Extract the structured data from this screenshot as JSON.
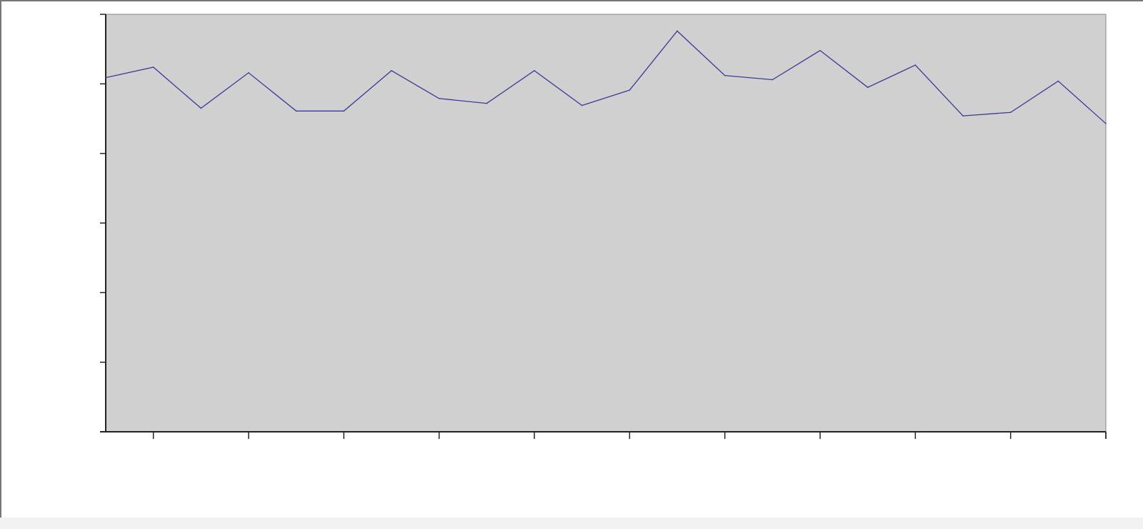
{
  "chart_data": {
    "type": "line",
    "title": "",
    "xlabel": "",
    "ylabel": "",
    "x": [
      1,
      2,
      3,
      4,
      5,
      6,
      7,
      8,
      9,
      10,
      11,
      12,
      13,
      14,
      15,
      16,
      17,
      18,
      19,
      20,
      21,
      22
    ],
    "series": [
      {
        "values": [
          5.09,
          5.24,
          4.65,
          5.16,
          4.61,
          4.61,
          5.19,
          4.79,
          4.72,
          5.19,
          4.69,
          4.91,
          5.76,
          5.12,
          5.06,
          5.48,
          4.95,
          5.27,
          4.54,
          4.59,
          5.04,
          4.43
        ]
      }
    ],
    "ylim": [
      0,
      6
    ],
    "y_ticks": [
      0,
      1,
      2,
      3,
      4,
      5,
      6
    ],
    "x_tick_every": 2,
    "grid": false,
    "legend": "none",
    "tick_labels_shown": false,
    "colors": {
      "plot_background": "#d0d0d0",
      "line": "#3a3a9a",
      "axis": "#222222"
    }
  }
}
